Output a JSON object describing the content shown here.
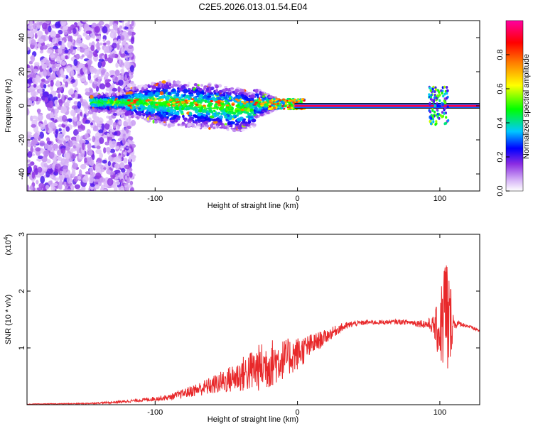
{
  "title": "C2E5.2026.013.01.54.E04",
  "chart_data": [
    {
      "type": "heatmap",
      "name": "spectrogram",
      "xlabel": "Height of straight line (km)",
      "ylabel": "Frequency (Hz)",
      "xlim": [
        -190,
        128
      ],
      "ylim": [
        -50,
        50
      ],
      "xticks": [
        -100,
        0,
        100
      ],
      "yticks": [
        -40,
        -20,
        0,
        20,
        40
      ],
      "colorbar": {
        "label": "Normalized spectral amplitude",
        "range": [
          0,
          1
        ],
        "ticks": [
          0.0,
          0.2,
          0.4,
          0.6,
          0.8
        ],
        "colors": [
          "#ffffff",
          "#d9b8f7",
          "#8a2be2",
          "#0000ff",
          "#00c8ff",
          "#00ff00",
          "#ffff00",
          "#ff8000",
          "#ff0000",
          "#ff00a0"
        ]
      },
      "features": [
        {
          "label": "noise scatter",
          "x_range": [
            -190,
            -120
          ],
          "freq_range": [
            -50,
            50
          ],
          "level": 0.1
        },
        {
          "label": "broad band",
          "x_range": [
            -145,
            -20
          ],
          "freq_range": [
            -15,
            12
          ],
          "level": 0.3
        },
        {
          "label": "carrier line",
          "x_range": [
            0,
            128
          ],
          "frequency": 0,
          "level": 0.95
        },
        {
          "label": "spike",
          "x": 102,
          "freq_range": [
            -12,
            10
          ],
          "level": 0.5
        }
      ]
    },
    {
      "type": "line",
      "name": "snr",
      "xlabel": "Height of straight line (km)",
      "ylabel": "SNR (10 * v/v)",
      "scale_label": "(x10",
      "scale_exp": "4",
      "xlim": [
        -190,
        128
      ],
      "ylim": [
        0,
        3
      ],
      "xticks": [
        -100,
        0,
        100
      ],
      "yticks": [
        1,
        2,
        3
      ],
      "color": "#e8282a",
      "profile": {
        "x": [
          -190,
          -150,
          -130,
          -110,
          -90,
          -80,
          -70,
          -60,
          -50,
          -40,
          -30,
          -20,
          -10,
          0,
          10,
          20,
          30,
          40,
          50,
          60,
          70,
          80,
          90,
          95,
          100,
          102,
          104,
          106,
          108,
          110,
          115,
          120,
          128
        ],
        "y": [
          0.01,
          0.02,
          0.04,
          0.08,
          0.13,
          0.2,
          0.27,
          0.34,
          0.42,
          0.52,
          0.62,
          0.72,
          0.8,
          0.9,
          1.05,
          1.2,
          1.35,
          1.43,
          1.45,
          1.45,
          1.46,
          1.45,
          1.42,
          1.4,
          1.3,
          1.5,
          1.6,
          1.4,
          1.5,
          1.42,
          1.42,
          1.38,
          1.3
        ],
        "noise": [
          0.005,
          0.01,
          0.02,
          0.03,
          0.05,
          0.08,
          0.12,
          0.16,
          0.22,
          0.3,
          0.4,
          0.45,
          0.35,
          0.3,
          0.2,
          0.12,
          0.08,
          0.05,
          0.04,
          0.04,
          0.04,
          0.05,
          0.08,
          0.15,
          0.6,
          0.9,
          1.4,
          1.0,
          0.6,
          0.1,
          0.04,
          0.03,
          0.03
        ]
      }
    }
  ]
}
